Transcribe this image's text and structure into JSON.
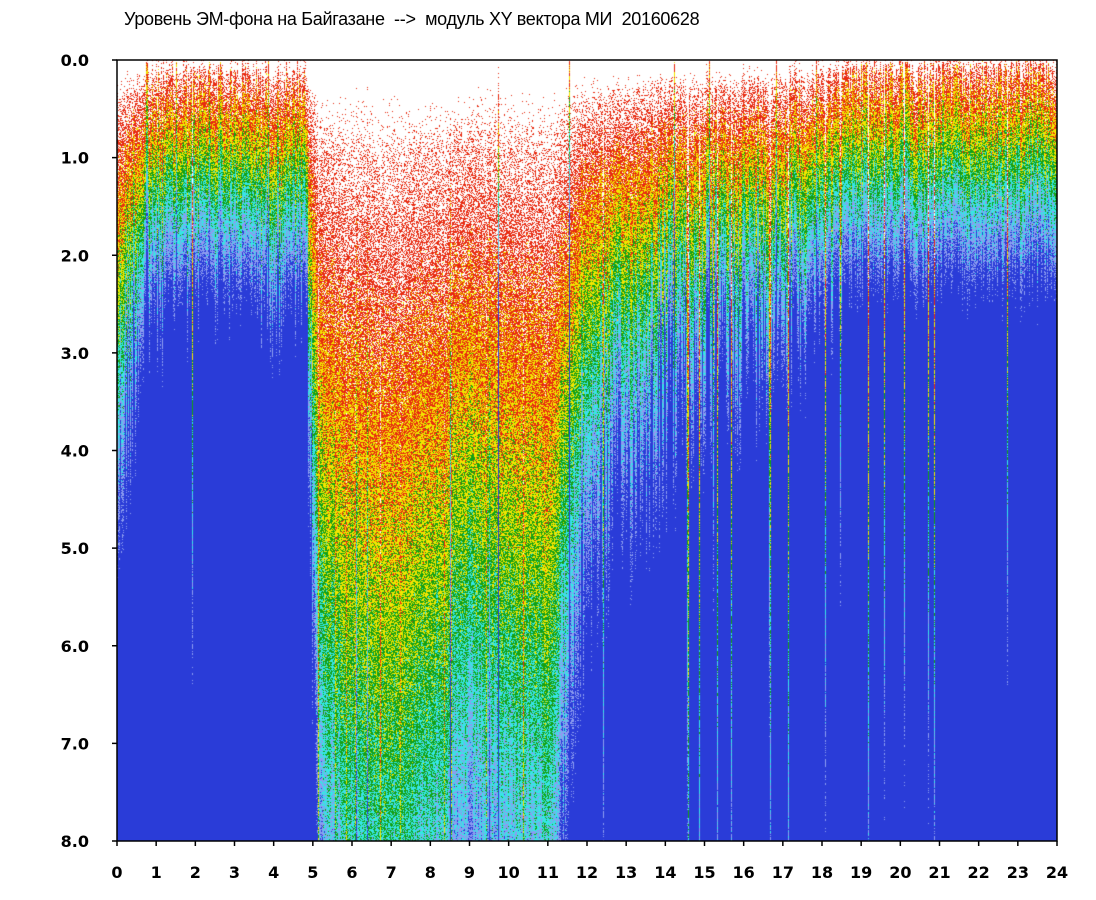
{
  "chart_data": {
    "type": "heatmap",
    "title": "Уровень ЭМ-фона на Байгазане  -->  модуль XY вектора МИ  20160628",
    "xlabel": "",
    "ylabel": "",
    "xlim": [
      0,
      24
    ],
    "ylim": [
      8.0,
      0.0
    ],
    "x_ticks": [
      "0",
      "1",
      "2",
      "3",
      "4",
      "5",
      "6",
      "7",
      "8",
      "9",
      "10",
      "11",
      "12",
      "13",
      "14",
      "15",
      "16",
      "17",
      "18",
      "19",
      "20",
      "21",
      "22",
      "23",
      "24"
    ],
    "y_ticks": [
      "0.0",
      "1.0",
      "2.0",
      "3.0",
      "4.0",
      "5.0",
      "6.0",
      "7.0",
      "8.0"
    ],
    "y_reversed": true,
    "grid": false,
    "colorscale": [
      "#ffffff",
      "#e82a10",
      "#f2e600",
      "#14a014",
      "#36e6e6",
      "#8c9cf0",
      "#2a3cd8"
    ],
    "level_profile": {
      "x": [
        0,
        0.5,
        1,
        2,
        3,
        4,
        4.8,
        5.2,
        6,
        7,
        8,
        9,
        9.5,
        10,
        11,
        11.4,
        12,
        13,
        14,
        15,
        16,
        17,
        18,
        19,
        20,
        21,
        22,
        23,
        24
      ],
      "threshold_y": [
        1.3,
        0.8,
        0.6,
        0.5,
        0.5,
        0.55,
        0.6,
        2.6,
        3.2,
        3.4,
        3.0,
        2.6,
        2.7,
        2.8,
        3.0,
        2.2,
        1.4,
        1.2,
        1.0,
        0.9,
        0.8,
        0.7,
        0.6,
        0.4,
        0.4,
        0.4,
        0.4,
        0.4,
        0.4
      ]
    }
  }
}
